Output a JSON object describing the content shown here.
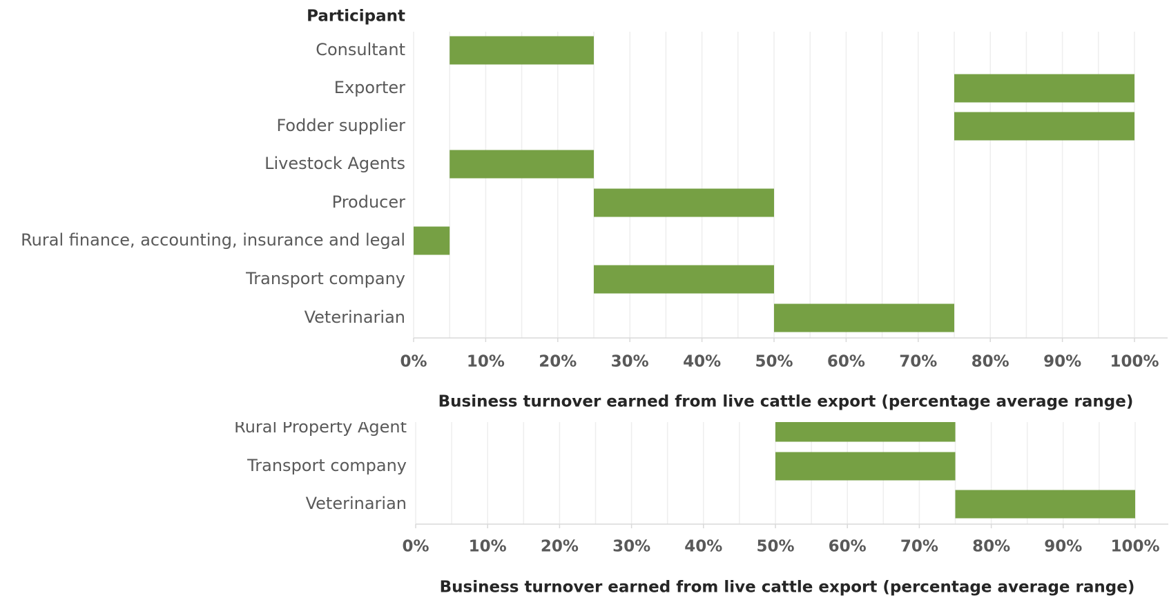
{
  "chart_data": [
    {
      "type": "floating_bar",
      "ylabel": "Participant",
      "xlabel": "Business turnover earned from live cattle export (percentage average range)",
      "categories": [
        "Consultant",
        "Exporter",
        "Fodder supplier",
        "Livestock Agents",
        "Producer",
        "Rural finance, accounting, insurance and legal",
        "Transport company",
        "Veterinarian"
      ],
      "low": [
        5,
        75,
        75,
        5,
        25,
        0,
        25,
        50
      ],
      "high": [
        25,
        100,
        100,
        25,
        50,
        5,
        50,
        75
      ],
      "color": "#76a044",
      "xlim": [
        0,
        100
      ],
      "xticks": [
        {
          "value": 0,
          "label": "0%"
        },
        {
          "value": 10,
          "label": "10%"
        },
        {
          "value": 20,
          "label": "20%"
        },
        {
          "value": 30,
          "label": "30%"
        },
        {
          "value": 40,
          "label": "40%"
        },
        {
          "value": 50,
          "label": "50%"
        },
        {
          "value": 60,
          "label": "60%"
        },
        {
          "value": 70,
          "label": "70%"
        },
        {
          "value": 80,
          "label": "80%"
        },
        {
          "value": 90,
          "label": "90%"
        },
        {
          "value": 100,
          "label": "100%"
        }
      ],
      "minor_xticks": [
        5,
        15,
        25,
        35,
        45,
        55,
        65,
        75,
        85,
        95
      ],
      "grid": true
    },
    {
      "type": "floating_bar",
      "xlabel": "Business turnover earned from live cattle export (percentage average range)",
      "categories": [
        "Rural Property Agent",
        "Transport company",
        "Veterinarian"
      ],
      "low": [
        50,
        50,
        75
      ],
      "high": [
        75,
        75,
        100
      ],
      "color": "#76a044",
      "xlim": [
        0,
        100
      ],
      "xticks": [
        {
          "value": 0,
          "label": "0%"
        },
        {
          "value": 10,
          "label": "10%"
        },
        {
          "value": 20,
          "label": "20%"
        },
        {
          "value": 30,
          "label": "30%"
        },
        {
          "value": 40,
          "label": "40%"
        },
        {
          "value": 50,
          "label": "50%"
        },
        {
          "value": 60,
          "label": "60%"
        },
        {
          "value": 70,
          "label": "70%"
        },
        {
          "value": 80,
          "label": "80%"
        },
        {
          "value": 90,
          "label": "90%"
        },
        {
          "value": 100,
          "label": "100%"
        }
      ],
      "minor_xticks": [
        5,
        15,
        25,
        35,
        45,
        55,
        65,
        75,
        85,
        95
      ],
      "grid": true
    }
  ]
}
